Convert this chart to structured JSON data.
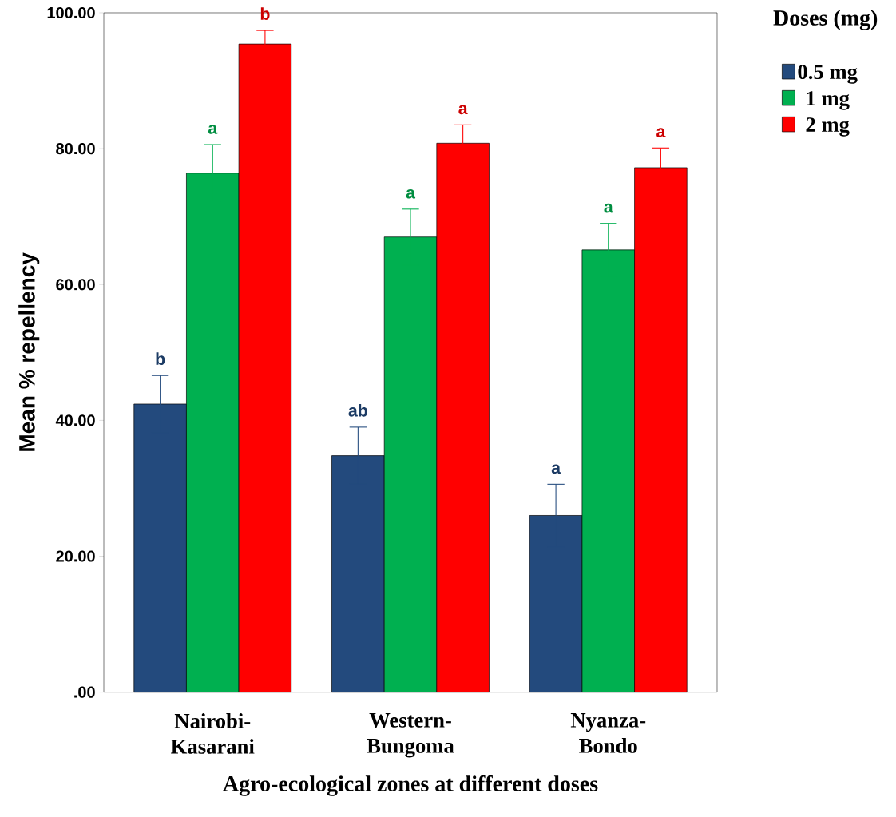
{
  "chart_data": {
    "type": "bar",
    "xlabel": "Agro-ecological zones at different doses",
    "ylabel": "Mean % repellency",
    "legend_title": "Doses (mg)",
    "categories": [
      "Nairobi-Kasarani",
      "Western-Bungoma",
      "Nyanza-Bondo"
    ],
    "series": [
      {
        "name": "0.5 mg",
        "color": "#234a7d",
        "values": [
          42.4,
          34.8,
          26.0
        ],
        "errors": [
          4.2,
          4.2,
          4.6
        ]
      },
      {
        "name": "1 mg",
        "color": "#00b050",
        "values": [
          76.4,
          67.0,
          65.1
        ],
        "errors": [
          4.2,
          4.1,
          3.9
        ]
      },
      {
        "name": "2 mg",
        "color": "#ff0000",
        "values": [
          95.4,
          80.8,
          77.2
        ],
        "errors": [
          2.0,
          2.7,
          2.9
        ]
      }
    ],
    "ylim": [
      0,
      100
    ],
    "yticks": [
      {
        "value": 0,
        "label": ".00"
      },
      {
        "value": 20,
        "label": "20.00"
      },
      {
        "value": 40,
        "label": "40.00"
      },
      {
        "value": 60,
        "label": "60.00"
      },
      {
        "value": 80,
        "label": "80.00"
      },
      {
        "value": 100,
        "label": "100.00"
      }
    ],
    "annotations": [
      "b",
      "ab",
      "a",
      "a",
      "a",
      "a",
      "b",
      "a",
      "a"
    ],
    "legend": "top right",
    "grid": false
  }
}
